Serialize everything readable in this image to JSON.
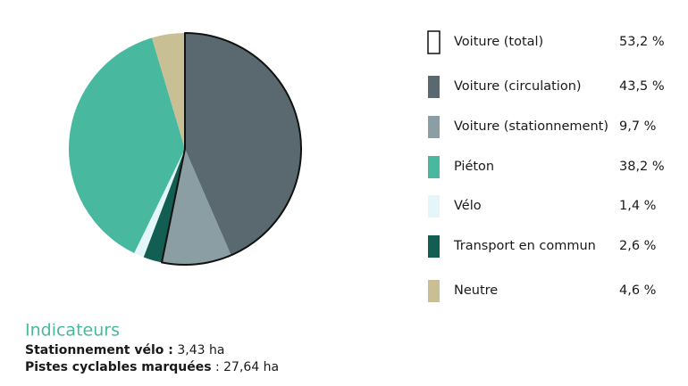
{
  "chart_data": {
    "type": "pie",
    "categories": [
      "Voiture (circulation)",
      "Voiture (stationnement)",
      "Transport en commun",
      "Vélo",
      "Piéton",
      "Neutre"
    ],
    "values": [
      43.5,
      9.7,
      2.6,
      1.4,
      38.2,
      4.6
    ],
    "value_labels": [
      "43,5 %",
      "9,7 %",
      "2,6 %",
      "1,4 %",
      "38,2 %",
      "4,6 %"
    ],
    "colors": [
      "#59696f",
      "#8a9ea3",
      "#135e52",
      "#e4f6fa",
      "#48b89f",
      "#c8bf95"
    ],
    "legend_order": [
      0,
      1,
      4,
      3,
      2,
      5
    ],
    "total": {
      "name": "Voiture (total)",
      "value": 53.2,
      "value_label": "53,2 %",
      "color": "#111111"
    }
  },
  "indicators": {
    "title": "Indicateurs",
    "items": [
      {
        "label": "Stationnement vélo :",
        "value": "3,43 ha"
      },
      {
        "label": "Pistes cyclables marquées",
        "value": ": 27,64 ha"
      }
    ]
  }
}
